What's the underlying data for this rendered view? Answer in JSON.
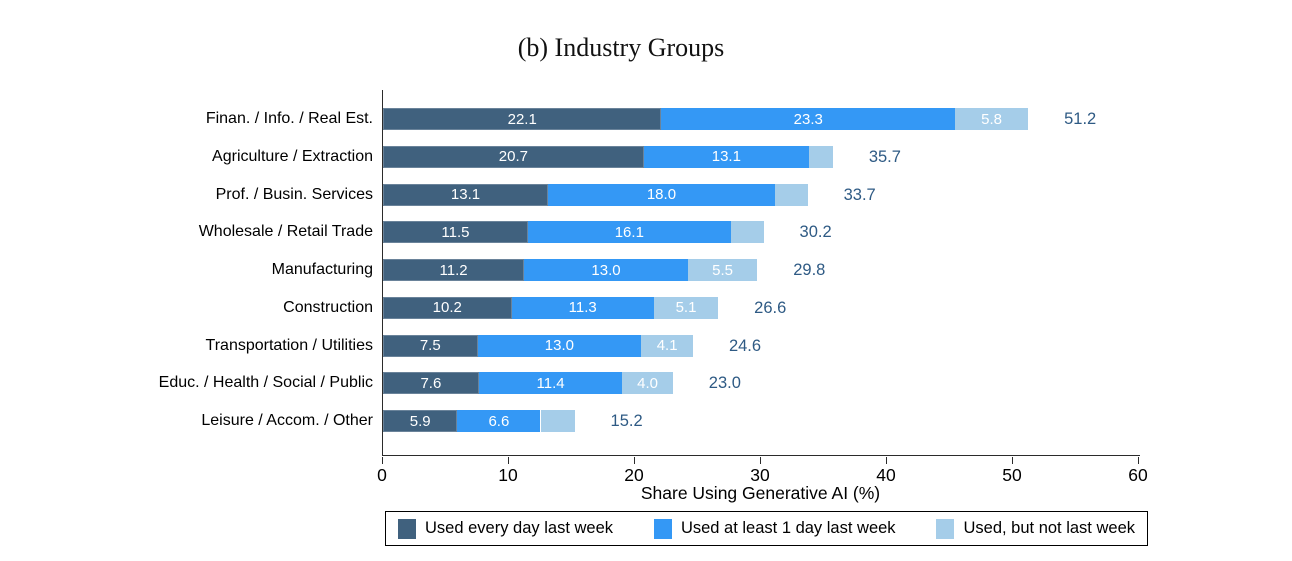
{
  "title": "(b) Industry Groups",
  "chart_data": {
    "type": "bar",
    "orientation": "horizontal",
    "stacked": true,
    "title": "(b) Industry Groups",
    "xlabel": "Share Using Generative AI (%)",
    "xlim": [
      0,
      60
    ],
    "xticks": [
      "0",
      "10",
      "20",
      "30",
      "40",
      "50",
      "60"
    ],
    "grid": false,
    "legend_position": "bottom-boxed",
    "categories": [
      "Finan. / Info. / Real Est.",
      "Agriculture / Extraction",
      "Prof. / Busin. Services",
      "Wholesale / Retail Trade",
      "Manufacturing",
      "Construction",
      "Transportation / Utilities",
      "Educ. / Health / Social / Public",
      "Leisure / Accom. / Other"
    ],
    "series": [
      {
        "name": "Used every day last week",
        "color": "#40617E",
        "values": [
          22.1,
          20.7,
          13.1,
          11.5,
          11.2,
          10.2,
          7.5,
          7.6,
          5.9
        ]
      },
      {
        "name": "Used at least 1 day last week",
        "color": "#3498F5",
        "values": [
          23.3,
          13.1,
          18.0,
          16.1,
          13.0,
          11.3,
          13.0,
          11.4,
          6.6
        ]
      },
      {
        "name": "Used, but not last week",
        "color": "#A5CDE9",
        "values": [
          5.8,
          1.9,
          2.6,
          2.6,
          5.5,
          5.1,
          4.1,
          4.0,
          2.7
        ]
      }
    ],
    "segment_labels": [
      [
        "22.1",
        "23.3",
        "5.8"
      ],
      [
        "20.7",
        "13.1",
        ""
      ],
      [
        "13.1",
        "18.0",
        ""
      ],
      [
        "11.5",
        "16.1",
        ""
      ],
      [
        "11.2",
        "13.0",
        "5.5"
      ],
      [
        "10.2",
        "11.3",
        "5.1"
      ],
      [
        "7.5",
        "13.0",
        "4.1"
      ],
      [
        "7.6",
        "11.4",
        "4.0"
      ],
      [
        "5.9",
        "6.6",
        ""
      ]
    ],
    "totals": [
      "51.2",
      "35.7",
      "33.7",
      "30.2",
      "29.8",
      "26.6",
      "24.6",
      "23.0",
      "15.2"
    ],
    "colors": {
      "value_label": "#FFFFFF",
      "total_label": "#2E5A84",
      "axis_line": "#2B2B2B"
    }
  }
}
